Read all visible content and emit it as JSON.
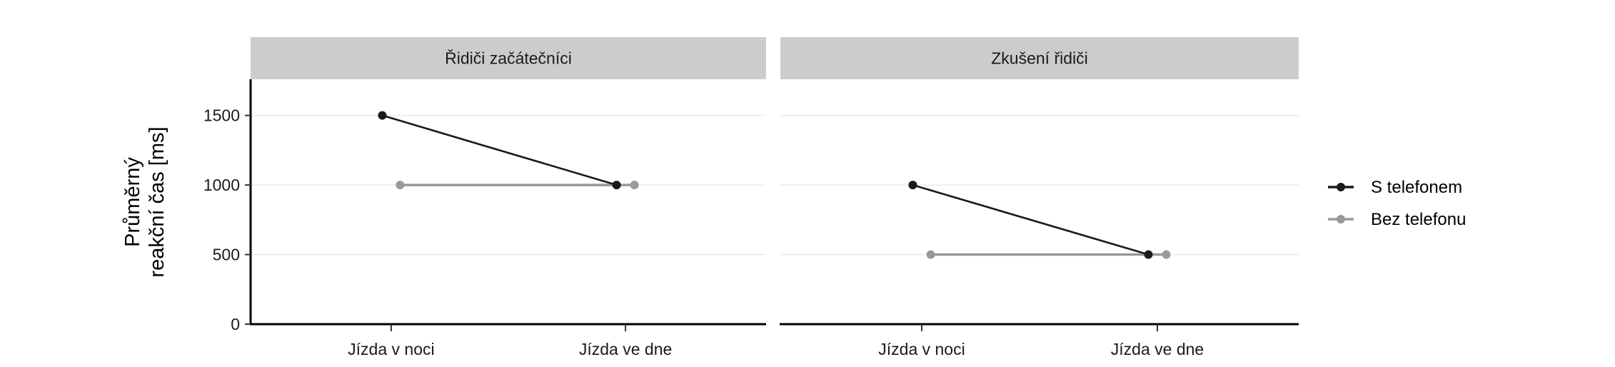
{
  "chart_data": {
    "type": "line",
    "ylabel_lines": [
      "Průměrný",
      "reakční čas [ms]"
    ],
    "xlabel": "",
    "categories": [
      "Jízda v noci",
      "Jízda ve dne"
    ],
    "yticks": [
      0,
      500,
      1000,
      1500
    ],
    "ylim": [
      0,
      1760
    ],
    "grid": true,
    "legend_position": "right",
    "panels": [
      {
        "title": "Řidiči začátečníci",
        "series": [
          {
            "name": "S telefonem",
            "values": [
              1500,
              1000
            ]
          },
          {
            "name": "Bez telefonu",
            "values": [
              1000,
              1000
            ]
          }
        ]
      },
      {
        "title": "Zkušení řidiči",
        "series": [
          {
            "name": "S telefonem",
            "values": [
              1000,
              500
            ]
          },
          {
            "name": "Bez telefonu",
            "values": [
              500,
              500
            ]
          }
        ]
      }
    ],
    "legend": [
      {
        "name": "S telefonem",
        "color": "#1a1a1a"
      },
      {
        "name": "Bez telefonu",
        "color": "#999999"
      }
    ],
    "colors": {
      "strip": "#cccccc",
      "grid": "#ebebeb",
      "axis": "#000000"
    }
  }
}
